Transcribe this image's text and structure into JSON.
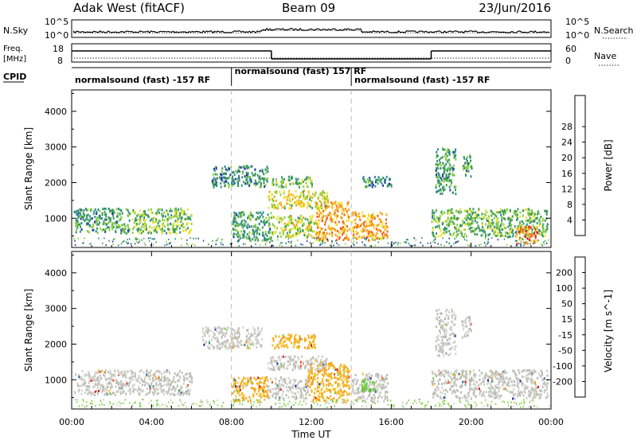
{
  "header": {
    "station": "Adak West (fitACF)",
    "beam": "Beam 09",
    "date": "23/Jun/2016"
  },
  "time_axis": {
    "label": "Time UT",
    "ticks": [
      {
        "hour": 0,
        "label": "00:00"
      },
      {
        "hour": 4,
        "label": "04:00"
      },
      {
        "hour": 8,
        "label": "08:00"
      },
      {
        "hour": 12,
        "label": "12:00"
      },
      {
        "hour": 16,
        "label": "16:00"
      },
      {
        "hour": 20,
        "label": "20:00"
      },
      {
        "hour": 24,
        "label": "00:00"
      }
    ]
  },
  "nsky_panel": {
    "left_label": "N.Sky",
    "right_label": "N.Search",
    "ticks": [
      "10^5",
      "10^0"
    ]
  },
  "freq_panel": {
    "left_label_line1": "Freq.",
    "left_label_line2": "[MHz]",
    "right_label": "Nave",
    "left_ticks": [
      "18",
      "8"
    ],
    "right_ticks": [
      "60",
      "0"
    ],
    "freq_segments": [
      {
        "start": 0,
        "end": 10.0,
        "level": "high"
      },
      {
        "start": 10.0,
        "end": 18.0,
        "level": "low"
      },
      {
        "start": 18.0,
        "end": 24,
        "level": "high"
      }
    ]
  },
  "cpid_panel": {
    "label": "CPID",
    "segments": [
      {
        "start": 0,
        "end": 8.0,
        "text": "normalsound (fast) -157 RF"
      },
      {
        "start": 8.0,
        "end": 14.0,
        "text": "normalsound (fast) 157 RF"
      },
      {
        "start": 14.0,
        "end": 24,
        "text": "normalsound (fast) -157 RF"
      }
    ]
  },
  "chart_data": [
    {
      "type": "heatmap",
      "quantity": "power",
      "ylabel": "Slant Range [km]",
      "xlabel": "Time UT",
      "xlim": [
        0,
        24
      ],
      "ylim": [
        180,
        4600
      ],
      "yticks": [
        1000,
        2000,
        3000,
        4000
      ],
      "colorbar": {
        "label": "Power [dB]",
        "ticks": [
          "4",
          "8",
          "12",
          "16",
          "20",
          "24",
          "28"
        ],
        "colors": [
          "#0000ff",
          "#1e3c9c",
          "#2e8b8b",
          "#3c9a5a",
          "#8ccf3c",
          "#f2e12b",
          "#f8a21c",
          "#f0641a",
          "#e81e14"
        ]
      },
      "echo_regions": [
        {
          "t0": 0.1,
          "t1": 2.9,
          "r0": 600,
          "r1": 1300,
          "level": 0.35
        },
        {
          "t0": 3.0,
          "t1": 6.0,
          "r0": 600,
          "r1": 1300,
          "level": 0.45
        },
        {
          "t0": 8.0,
          "t1": 10.0,
          "r0": 400,
          "r1": 1200,
          "level": 0.35
        },
        {
          "t0": 10.0,
          "t1": 12.2,
          "r0": 500,
          "r1": 1100,
          "level": 0.55
        },
        {
          "t0": 12.2,
          "t1": 13.9,
          "r0": 400,
          "r1": 1500,
          "level": 0.75
        },
        {
          "t0": 9.8,
          "t1": 12.8,
          "r0": 1300,
          "r1": 1800,
          "level": 0.6
        },
        {
          "t0": 10.0,
          "t1": 12.0,
          "r0": 1900,
          "r1": 2200,
          "level": 0.45
        },
        {
          "t0": 7.0,
          "t1": 9.8,
          "r0": 1900,
          "r1": 2500,
          "level": 0.3
        },
        {
          "t0": 14.0,
          "t1": 15.8,
          "r0": 400,
          "r1": 1200,
          "level": 0.75
        },
        {
          "t0": 14.5,
          "t1": 16.0,
          "r0": 1900,
          "r1": 2200,
          "level": 0.3
        },
        {
          "t0": 18.0,
          "t1": 23.8,
          "r0": 500,
          "r1": 1300,
          "level": 0.45
        },
        {
          "t0": 22.2,
          "t1": 23.3,
          "r0": 300,
          "r1": 800,
          "level": 0.8
        },
        {
          "t0": 18.2,
          "t1": 19.2,
          "r0": 1700,
          "r1": 3000,
          "level": 0.35
        },
        {
          "t0": 19.5,
          "t1": 20.0,
          "r0": 2200,
          "r1": 2800,
          "level": 0.35
        }
      ]
    },
    {
      "type": "heatmap",
      "quantity": "velocity",
      "ylabel": "Slant Range [km]",
      "xlabel": "Time UT",
      "xlim": [
        0,
        24
      ],
      "ylim": [
        180,
        4600
      ],
      "yticks": [
        1000,
        2000,
        3000,
        4000
      ],
      "colorbar": {
        "label": "Velocity [m s^-1]",
        "ticks": [
          "200",
          "100",
          "50",
          "15",
          "-15",
          "-50",
          "-100",
          "-200"
        ],
        "colors": [
          "#1c2b9c",
          "#2a6a9c",
          "#2e8b5a",
          "#7bd03c",
          "#c8c8c0",
          "#f2c22b",
          "#f8901c",
          "#f0501a",
          "#e01414"
        ]
      },
      "echo_regions": [
        {
          "t0": 0.1,
          "t1": 6.0,
          "r0": 600,
          "r1": 1300,
          "class": "grey"
        },
        {
          "t0": 6.5,
          "t1": 9.5,
          "r0": 1900,
          "r1": 2500,
          "class": "grey"
        },
        {
          "t0": 8.0,
          "t1": 9.8,
          "r0": 400,
          "r1": 1100,
          "class": "orange"
        },
        {
          "t0": 9.8,
          "t1": 11.8,
          "r0": 500,
          "r1": 1100,
          "class": "grey"
        },
        {
          "t0": 11.8,
          "t1": 13.9,
          "r0": 400,
          "r1": 1500,
          "class": "orange"
        },
        {
          "t0": 10.0,
          "t1": 12.2,
          "r0": 1900,
          "r1": 2300,
          "class": "orange"
        },
        {
          "t0": 9.8,
          "t1": 12.8,
          "r0": 1300,
          "r1": 1700,
          "class": "grey"
        },
        {
          "t0": 14.0,
          "t1": 15.8,
          "r0": 400,
          "r1": 1200,
          "class": "grey"
        },
        {
          "t0": 14.5,
          "t1": 15.2,
          "r0": 700,
          "r1": 1100,
          "class": "green"
        },
        {
          "t0": 18.0,
          "t1": 23.8,
          "r0": 500,
          "r1": 1300,
          "class": "grey"
        },
        {
          "t0": 18.2,
          "t1": 19.2,
          "r0": 1700,
          "r1": 3000,
          "class": "grey"
        },
        {
          "t0": 19.5,
          "t1": 20.0,
          "r0": 2200,
          "r1": 2800,
          "class": "grey"
        }
      ]
    }
  ]
}
